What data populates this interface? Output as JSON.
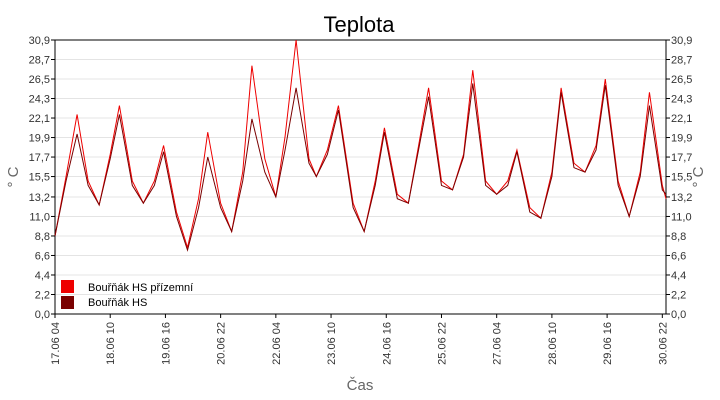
{
  "chart_data": {
    "type": "line",
    "title": "Teplota",
    "xlabel": "Čas",
    "ylabel": "° C",
    "ylim": [
      0,
      30.9
    ],
    "yticks": [
      "0,0",
      "2,2",
      "4,4",
      "6,6",
      "8,8",
      "11,0",
      "13,2",
      "15,5",
      "17,7",
      "19,9",
      "22,1",
      "24,3",
      "26,5",
      "28,7",
      "30,9"
    ],
    "xlim": [
      "17.06 04:00",
      "30.06 24:00"
    ],
    "xticks": [
      "17.06 04",
      "18.06 10",
      "19.06 16",
      "20.06 22",
      "22.06 04",
      "23.06 10",
      "24.06 16",
      "25.06 22",
      "27.06 04",
      "28.06 10",
      "29.06 16",
      "30.06 22"
    ],
    "grid": true,
    "legend_position": "bottom-left",
    "series": [
      {
        "name": "Bouřňák HS přízemní",
        "color": "#ee0000",
        "points": [
          [
            "17.06 04:00",
            8.8
          ],
          [
            "17.06 10:00",
            15.5
          ],
          [
            "17.06 16:00",
            22.5
          ],
          [
            "17.06 22:00",
            15.0
          ],
          [
            "18.06 04:00",
            12.3
          ],
          [
            "18.06 10:00",
            18.0
          ],
          [
            "18.06 15:00",
            23.5
          ],
          [
            "18.06 22:00",
            15.0
          ],
          [
            "19.06 04:00",
            12.5
          ],
          [
            "19.06 10:00",
            15.0
          ],
          [
            "19.06 15:00",
            19.0
          ],
          [
            "19.06 22:00",
            11.5
          ],
          [
            "20.06 04:00",
            7.5
          ],
          [
            "20.06 10:00",
            13.0
          ],
          [
            "20.06 15:00",
            20.5
          ],
          [
            "20.06 22:00",
            12.5
          ],
          [
            "21.06 04:00",
            9.3
          ],
          [
            "21.06 10:00",
            16.0
          ],
          [
            "21.06 15:00",
            28.0
          ],
          [
            "21.06 22:00",
            17.5
          ],
          [
            "22.06 04:00",
            13.2
          ],
          [
            "22.06 09:00",
            20.0
          ],
          [
            "22.06 15:00",
            30.9
          ],
          [
            "22.06 22:00",
            17.5
          ],
          [
            "23.06 02:00",
            15.5
          ],
          [
            "23.06 08:00",
            18.5
          ],
          [
            "23.06 14:00",
            23.5
          ],
          [
            "23.06 22:00",
            12.5
          ],
          [
            "24.06 04:00",
            9.3
          ],
          [
            "24.06 10:00",
            15.0
          ],
          [
            "24.06 15:00",
            21.0
          ],
          [
            "24.06 22:00",
            13.5
          ],
          [
            "25.06 04:00",
            12.5
          ],
          [
            "25.06 10:00",
            19.5
          ],
          [
            "25.06 15:00",
            25.5
          ],
          [
            "25.06 22:00",
            15.0
          ],
          [
            "26.06 04:00",
            14.0
          ],
          [
            "26.06 10:00",
            18.0
          ],
          [
            "26.06 15:00",
            27.5
          ],
          [
            "26.06 22:00",
            15.0
          ],
          [
            "27.06 04:00",
            13.5
          ],
          [
            "27.06 10:00",
            15.0
          ],
          [
            "27.06 15:00",
            18.5
          ],
          [
            "27.06 22:00",
            12.0
          ],
          [
            "28.06 04:00",
            10.8
          ],
          [
            "28.06 10:00",
            16.0
          ],
          [
            "28.06 15:00",
            25.5
          ],
          [
            "28.06 22:00",
            17.0
          ],
          [
            "29.06 04:00",
            16.0
          ],
          [
            "29.06 10:00",
            19.0
          ],
          [
            "29.06 15:00",
            26.5
          ],
          [
            "29.06 22:00",
            15.0
          ],
          [
            "30.06 04:00",
            11.0
          ],
          [
            "30.06 10:00",
            16.0
          ],
          [
            "30.06 15:00",
            25.0
          ],
          [
            "30.06 22:00",
            14.5
          ],
          [
            "30.06 24:00",
            13.0
          ]
        ]
      },
      {
        "name": "Bouřňák HS",
        "color": "#7a0000",
        "points": [
          [
            "17.06 04:00",
            8.8
          ],
          [
            "17.06 10:00",
            15.0
          ],
          [
            "17.06 16:00",
            20.3
          ],
          [
            "17.06 22:00",
            14.5
          ],
          [
            "18.06 04:00",
            12.3
          ],
          [
            "18.06 10:00",
            17.5
          ],
          [
            "18.06 15:00",
            22.5
          ],
          [
            "18.06 22:00",
            14.5
          ],
          [
            "19.06 04:00",
            12.5
          ],
          [
            "19.06 10:00",
            14.5
          ],
          [
            "19.06 15:00",
            18.3
          ],
          [
            "19.06 22:00",
            11.0
          ],
          [
            "20.06 04:00",
            7.2
          ],
          [
            "20.06 10:00",
            12.0
          ],
          [
            "20.06 15:00",
            17.7
          ],
          [
            "20.06 22:00",
            12.0
          ],
          [
            "21.06 04:00",
            9.3
          ],
          [
            "21.06 10:00",
            15.0
          ],
          [
            "21.06 15:00",
            22.0
          ],
          [
            "21.06 22:00",
            16.0
          ],
          [
            "22.06 04:00",
            13.2
          ],
          [
            "22.06 09:00",
            18.5
          ],
          [
            "22.06 15:00",
            25.5
          ],
          [
            "22.06 22:00",
            17.0
          ],
          [
            "23.06 02:00",
            15.5
          ],
          [
            "23.06 08:00",
            18.0
          ],
          [
            "23.06 14:00",
            23.0
          ],
          [
            "23.06 22:00",
            12.0
          ],
          [
            "24.06 04:00",
            9.3
          ],
          [
            "24.06 10:00",
            14.5
          ],
          [
            "24.06 15:00",
            20.5
          ],
          [
            "24.06 22:00",
            13.0
          ],
          [
            "25.06 04:00",
            12.5
          ],
          [
            "25.06 10:00",
            19.0
          ],
          [
            "25.06 15:00",
            24.5
          ],
          [
            "25.06 22:00",
            14.5
          ],
          [
            "26.06 04:00",
            14.0
          ],
          [
            "26.06 10:00",
            17.7
          ],
          [
            "26.06 15:00",
            26.0
          ],
          [
            "26.06 22:00",
            14.5
          ],
          [
            "27.06 04:00",
            13.5
          ],
          [
            "27.06 10:00",
            14.5
          ],
          [
            "27.06 15:00",
            18.3
          ],
          [
            "27.06 22:00",
            11.5
          ],
          [
            "28.06 04:00",
            10.8
          ],
          [
            "28.06 10:00",
            15.5
          ],
          [
            "28.06 15:00",
            25.0
          ],
          [
            "28.06 22:00",
            16.5
          ],
          [
            "29.06 04:00",
            16.0
          ],
          [
            "29.06 10:00",
            18.5
          ],
          [
            "29.06 15:00",
            25.8
          ],
          [
            "29.06 22:00",
            14.5
          ],
          [
            "30.06 04:00",
            11.0
          ],
          [
            "30.06 10:00",
            15.5
          ],
          [
            "30.06 15:00",
            23.5
          ],
          [
            "30.06 22:00",
            14.0
          ],
          [
            "30.06 24:00",
            13.5
          ]
        ]
      }
    ]
  }
}
